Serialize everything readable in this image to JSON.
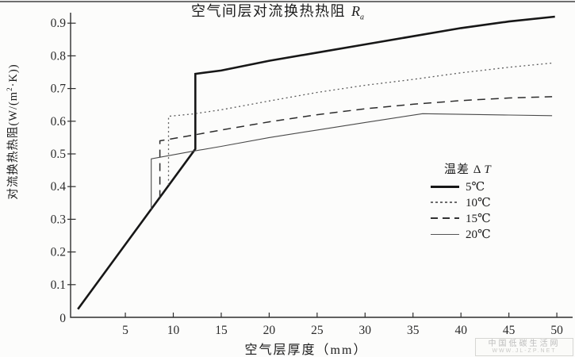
{
  "title": {
    "text": "空气间层对流换热热阻",
    "symbol": "R",
    "symbol_sub": "a"
  },
  "y_axis": {
    "label_prefix": "对流换热热阻(W/(m",
    "label_sup": "2",
    "label_suffix": "·K))"
  },
  "x_axis": {
    "label": "空气层厚度（mm）"
  },
  "legend": {
    "header_prefix": "温差 Δ",
    "header_italic": "T",
    "items": [
      {
        "id": "t5",
        "label": "5℃",
        "line": "solid-thick"
      },
      {
        "id": "t10",
        "label": "10℃",
        "line": "dotted"
      },
      {
        "id": "t15",
        "label": "15℃",
        "line": "dashed"
      },
      {
        "id": "t20",
        "label": "20℃",
        "line": "solid-thin"
      }
    ]
  },
  "watermark": {
    "line1": "中国低碳生活网",
    "line2": "WWW.JL-ZP.NET"
  },
  "chart_data": {
    "type": "line",
    "title": "空气间层对流换热热阻 Ra",
    "xlabel": "空气层厚度 (mm)",
    "ylabel": "对流换热热阻 (W/(m²·K))",
    "xlim": [
      0,
      51.7
    ],
    "ylim": [
      0,
      0.93
    ],
    "grid": false,
    "legend_position": "right-middle",
    "legend_title": "温差 ΔT",
    "x_ticks": [
      5,
      10,
      15,
      20,
      25,
      30,
      35,
      40,
      45,
      50
    ],
    "y_ticks": [
      0,
      0.1,
      0.2,
      0.3,
      0.4,
      0.5,
      0.6,
      0.7,
      0.8,
      0.9
    ],
    "series": [
      {
        "id": "t5",
        "name": "5℃",
        "line": "solid-thick",
        "points": [
          [
            0.05,
            0.025
          ],
          [
            12.3,
            0.515
          ],
          [
            12.3,
            0.745
          ],
          [
            15,
            0.755
          ],
          [
            20,
            0.785
          ],
          [
            25,
            0.81
          ],
          [
            30,
            0.835
          ],
          [
            35,
            0.86
          ],
          [
            40,
            0.885
          ],
          [
            45,
            0.905
          ],
          [
            49.8,
            0.92
          ]
        ]
      },
      {
        "id": "t10",
        "name": "10℃",
        "line": "dotted",
        "points": [
          [
            9.5,
            0.405
          ],
          [
            9.5,
            0.615
          ],
          [
            12,
            0.622
          ],
          [
            15,
            0.635
          ],
          [
            20,
            0.662
          ],
          [
            25,
            0.688
          ],
          [
            30,
            0.71
          ],
          [
            35,
            0.728
          ],
          [
            40,
            0.748
          ],
          [
            45,
            0.765
          ],
          [
            49.5,
            0.778
          ]
        ]
      },
      {
        "id": "t15",
        "name": "15℃",
        "line": "dashed",
        "points": [
          [
            8.6,
            0.365
          ],
          [
            8.6,
            0.54
          ],
          [
            12,
            0.557
          ],
          [
            15,
            0.573
          ],
          [
            20,
            0.598
          ],
          [
            25,
            0.62
          ],
          [
            30,
            0.638
          ],
          [
            35,
            0.652
          ],
          [
            40,
            0.663
          ],
          [
            45,
            0.671
          ],
          [
            49.5,
            0.675
          ]
        ]
      },
      {
        "id": "t20",
        "name": "20℃",
        "line": "solid-thin",
        "points": [
          [
            7.7,
            0.33
          ],
          [
            7.7,
            0.485
          ],
          [
            12,
            0.508
          ],
          [
            15,
            0.523
          ],
          [
            20,
            0.55
          ],
          [
            25,
            0.573
          ],
          [
            30,
            0.596
          ],
          [
            36,
            0.623
          ],
          [
            40,
            0.621
          ],
          [
            45,
            0.619
          ],
          [
            49.5,
            0.617
          ]
        ]
      }
    ]
  }
}
